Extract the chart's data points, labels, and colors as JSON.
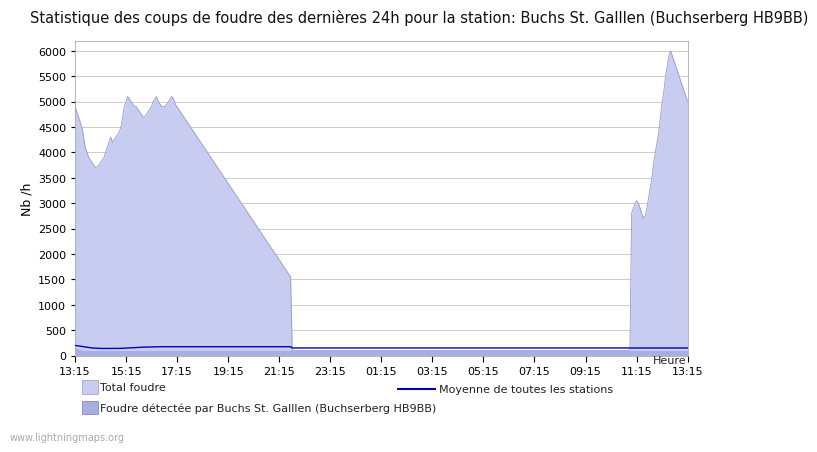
{
  "title": "Statistique des coups de foudre des dernières 24h pour la station: Buchs St. Galllen (Buchserberg HB9BB)",
  "ylabel": "Nb /h",
  "xlabel": "Heure",
  "watermark": "www.lightningmaps.org",
  "ylim": [
    0,
    6200
  ],
  "yticks": [
    0,
    500,
    1000,
    1500,
    2000,
    2500,
    3000,
    3500,
    4000,
    4500,
    5000,
    5500,
    6000
  ],
  "xtick_labels": [
    "13:15",
    "15:15",
    "17:15",
    "19:15",
    "21:15",
    "23:15",
    "01:15",
    "03:15",
    "05:15",
    "07:15",
    "09:15",
    "11:15",
    "13:15"
  ],
  "fill_color": "#c8ccf0",
  "fill_edge_color": "#9898c8",
  "station_fill_color": "#a8aee0",
  "station_edge_color": "#7878c0",
  "mean_line_color": "#0000bb",
  "background_color": "#ffffff",
  "plot_bg_color": "#ffffff",
  "grid_color": "#cccccc",
  "title_fontsize": 10.5,
  "legend_fontsize": 8,
  "tick_fontsize": 8,
  "legend_total": "Total foudre",
  "legend_station": "Foudre détectée par Buchs St. Galllen (Buchserberg HB9BB)",
  "legend_mean": "Moyenne de toutes les stations",
  "label_heure": "Heure",
  "total_foudre": [
    4900,
    4800,
    4700,
    4600,
    4500,
    4300,
    4100,
    4000,
    3900,
    3850,
    3800,
    3750,
    3700,
    3720,
    3750,
    3800,
    3850,
    3900,
    4000,
    4100,
    4200,
    4300,
    4200,
    4250,
    4300,
    4350,
    4400,
    4500,
    4700,
    4900,
    5000,
    5100,
    5050,
    5000,
    4950,
    4900,
    4900,
    4850,
    4800,
    4750,
    4700,
    4700,
    4750,
    4800,
    4850,
    4900,
    5000,
    5050,
    5100,
    5000,
    4950,
    4900,
    4900,
    4900,
    4950,
    5000,
    5050,
    5100,
    5050,
    4950,
    4900,
    4850,
    4800,
    4750,
    4700,
    4650,
    4600,
    4550,
    4500,
    4450,
    4400,
    4350,
    4300,
    4250,
    4200,
    4150,
    4100,
    4050,
    4000,
    3950,
    3900,
    3850,
    3800,
    3750,
    3700,
    3650,
    3600,
    3550,
    3500,
    3450,
    3400,
    3350,
    3300,
    3250,
    3200,
    3150,
    3100,
    3050,
    3000,
    2950,
    2900,
    2850,
    2800,
    2750,
    2700,
    2650,
    2600,
    2550,
    2500,
    2450,
    2400,
    2350,
    2300,
    2250,
    2200,
    2150,
    2100,
    2050,
    2000,
    1950,
    1900,
    1850,
    1800,
    1750,
    1700,
    1650,
    1600,
    1550,
    100,
    100,
    100,
    100,
    100,
    100,
    100,
    100,
    100,
    100,
    100,
    100,
    100,
    100,
    100,
    100,
    100,
    100,
    100,
    100,
    100,
    100,
    100,
    100,
    100,
    100,
    100,
    100,
    100,
    100,
    100,
    100,
    100,
    100,
    100,
    100,
    100,
    100,
    100,
    100,
    100,
    100,
    100,
    100,
    100,
    100,
    100,
    100,
    100,
    100,
    100,
    100,
    100,
    100,
    100,
    100,
    100,
    100,
    100,
    100,
    100,
    100,
    100,
    100,
    100,
    100,
    100,
    100,
    100,
    100,
    100,
    100,
    100,
    100,
    100,
    100,
    100,
    100,
    100,
    100,
    100,
    100,
    100,
    100,
    100,
    100,
    100,
    100,
    100,
    100,
    100,
    100,
    100,
    100,
    100,
    100,
    100,
    100,
    100,
    100,
    100,
    100,
    100,
    100,
    100,
    100,
    100,
    100,
    100,
    100,
    100,
    100,
    100,
    100,
    100,
    100,
    100,
    100,
    100,
    100,
    100,
    100,
    100,
    100,
    100,
    100,
    100,
    100,
    100,
    100,
    100,
    100,
    100,
    100,
    100,
    100,
    100,
    100,
    100,
    100,
    100,
    100,
    100,
    100,
    100,
    100,
    100,
    100,
    100,
    100,
    100,
    100,
    100,
    100,
    100,
    100,
    100,
    100,
    100,
    100,
    100,
    100,
    100,
    100,
    100,
    100,
    100,
    100,
    100,
    100,
    100,
    100,
    100,
    100,
    100,
    100,
    100,
    100,
    100,
    100,
    100,
    100,
    100,
    100,
    100,
    100,
    100,
    100,
    100,
    100,
    100,
    100,
    100,
    100,
    100,
    100,
    100,
    100,
    100,
    100,
    2800,
    2900,
    3000,
    3050,
    3000,
    2900,
    2800,
    2700,
    2750,
    2900,
    3100,
    3300,
    3500,
    3800,
    4000,
    4200,
    4400,
    4700,
    5000,
    5200,
    5500,
    5700,
    5900,
    6000,
    5900,
    5800,
    5700,
    5600,
    5500,
    5400,
    5300,
    5200,
    5100,
    5000
  ],
  "station_foudre": [
    150,
    140,
    130,
    120,
    110,
    100,
    100,
    100,
    100,
    100,
    100,
    100,
    100,
    100,
    100,
    100,
    100,
    100,
    100,
    100,
    100,
    100,
    100,
    100,
    100,
    100,
    100,
    100,
    100,
    100,
    100,
    100,
    100,
    100,
    100,
    100,
    100,
    100,
    100,
    100,
    100,
    100,
    100,
    100,
    100,
    100,
    100,
    100,
    100,
    100,
    100,
    100,
    100,
    100,
    100,
    100,
    100,
    100,
    100,
    100,
    100,
    100,
    100,
    100,
    100,
    100,
    100,
    100,
    100,
    100,
    100,
    100,
    100,
    100,
    100,
    100,
    100,
    100,
    100,
    100,
    100,
    100,
    100,
    100,
    100,
    100,
    100,
    100,
    100,
    100,
    100,
    100,
    100,
    100,
    100,
    100,
    100,
    100,
    100,
    100,
    100,
    100,
    100,
    100,
    100,
    100,
    100,
    100,
    100,
    100,
    100,
    100,
    100,
    100,
    100,
    100,
    100,
    100,
    100,
    100,
    100,
    100,
    100,
    100,
    100,
    100,
    100,
    100,
    100,
    100,
    100,
    100,
    100,
    100,
    100,
    100,
    100,
    100,
    100,
    100,
    100,
    100,
    100,
    100,
    100,
    100,
    100,
    100,
    100,
    100,
    100,
    100,
    100,
    100,
    100,
    100,
    100,
    100,
    100,
    100,
    100,
    100,
    100,
    100,
    100,
    100,
    100,
    100,
    100,
    100,
    100,
    100,
    100,
    100,
    100,
    100,
    100,
    100,
    100,
    100,
    100,
    100,
    100,
    100,
    100,
    100,
    100,
    100,
    100,
    100,
    100,
    100,
    100,
    100,
    100,
    100,
    100,
    100,
    100,
    100,
    100,
    100,
    100,
    100,
    100,
    100,
    100,
    100,
    100,
    100,
    100,
    100,
    100,
    100,
    100,
    100,
    100,
    100,
    100,
    100,
    100,
    100,
    100,
    100,
    100,
    100,
    100,
    100,
    100,
    100,
    100,
    100,
    100,
    100,
    100,
    100,
    100,
    100,
    100,
    100,
    100,
    100,
    100,
    100,
    100,
    100,
    100,
    100,
    100,
    100,
    100,
    100,
    100,
    100,
    100,
    100,
    100,
    100,
    100,
    100,
    100,
    100,
    100,
    100,
    100,
    100,
    100,
    100,
    100,
    100,
    100,
    100,
    100,
    100,
    100,
    100,
    100,
    100,
    100,
    100,
    100,
    100,
    100,
    100,
    100,
    100,
    100,
    100,
    100,
    100,
    100,
    100,
    100,
    100,
    100,
    100,
    100,
    100,
    100,
    100,
    100,
    100,
    100,
    100,
    100,
    100,
    100,
    100,
    100,
    100,
    100,
    100,
    100,
    100,
    100,
    100,
    100,
    100,
    100,
    100,
    100,
    100,
    100,
    100,
    100,
    100,
    100,
    100,
    100,
    100,
    100,
    100,
    100,
    100,
    100,
    100,
    100,
    100,
    100,
    100,
    100,
    100,
    100,
    100,
    100,
    100,
    100,
    100,
    100,
    100,
    100,
    100,
    100,
    100,
    100,
    100,
    100,
    100,
    100,
    100,
    100,
    100,
    100,
    100,
    100,
    100,
    100,
    100,
    100,
    100,
    100,
    100,
    100,
    100,
    100,
    100,
    100,
    100,
    100,
    100,
    100,
    100,
    100,
    100,
    100,
    100,
    100,
    100,
    100,
    100,
    100,
    100,
    100,
    100,
    100,
    100,
    100,
    100,
    100,
    100,
    100,
    100,
    100,
    100,
    100,
    100,
    100,
    100,
    100,
    100,
    100,
    100,
    100,
    100,
    100,
    100,
    100,
    100,
    100,
    100,
    100,
    100,
    100,
    100,
    100,
    100,
    100,
    100,
    100,
    100,
    100,
    100,
    100,
    100,
    100,
    100,
    100,
    100,
    100,
    100,
    100,
    100,
    100,
    100,
    100,
    100,
    100,
    100,
    100,
    100,
    100,
    100,
    100,
    100,
    100,
    100,
    100,
    100,
    100,
    100,
    100,
    100,
    100,
    100,
    100,
    100,
    100,
    100,
    100,
    100,
    100,
    100,
    100,
    100,
    100,
    100,
    100,
    100,
    100,
    100,
    100,
    100,
    100,
    100,
    100,
    100,
    100,
    100,
    100,
    100,
    100,
    100,
    100,
    100,
    100,
    100,
    100,
    100,
    100,
    100,
    100,
    100,
    100,
    100,
    100,
    100,
    100,
    100,
    100,
    100,
    100,
    100,
    100,
    100,
    100,
    100,
    100,
    100,
    100,
    100,
    100,
    100,
    100,
    100,
    100,
    100,
    100
  ],
  "mean_line": [
    200,
    195,
    190,
    185,
    180,
    175,
    170,
    165,
    160,
    155,
    150,
    148,
    146,
    144,
    142,
    140,
    140,
    140,
    140,
    140,
    140,
    140,
    140,
    140,
    140,
    140,
    140,
    142,
    144,
    146,
    148,
    150,
    152,
    154,
    156,
    158,
    160,
    162,
    164,
    165,
    166,
    167,
    168,
    169,
    170,
    171,
    172,
    173,
    174,
    175,
    175,
    175,
    175,
    175,
    175,
    175,
    175,
    175,
    175,
    175,
    175,
    175,
    175,
    175,
    175,
    175,
    175,
    175,
    175,
    175,
    175,
    175,
    175,
    175,
    175,
    175,
    175,
    175,
    175,
    175,
    175,
    175,
    175,
    175,
    175,
    175,
    175,
    175,
    175,
    175,
    175,
    175,
    175,
    175,
    175,
    175,
    175,
    175,
    175,
    175,
    175,
    175,
    175,
    175,
    175,
    175,
    175,
    175,
    175,
    175,
    175,
    175,
    175,
    175,
    175,
    175,
    175,
    175,
    175,
    175,
    175,
    175,
    175,
    175,
    175,
    175,
    175,
    175,
    150,
    150,
    150,
    150,
    150,
    150,
    150,
    150,
    150,
    150,
    150,
    150,
    150,
    150,
    150,
    150,
    150,
    150,
    150,
    150,
    150,
    150,
    150,
    150,
    150,
    150,
    150,
    150,
    150,
    150,
    150,
    150,
    150,
    150,
    150,
    150,
    150,
    150,
    150,
    150,
    150,
    150,
    150,
    150,
    150,
    150,
    150,
    150,
    150,
    150,
    150,
    150,
    150,
    150,
    150,
    150,
    150,
    150,
    150,
    150,
    150,
    150,
    150,
    150,
    150,
    150,
    150,
    150,
    150,
    150,
    150,
    150,
    150,
    150,
    150,
    150,
    150,
    150,
    150,
    150,
    150,
    150,
    150,
    150,
    150,
    150,
    150,
    150,
    150,
    150,
    150,
    150,
    150,
    150,
    150,
    150,
    150,
    150,
    150,
    150,
    150,
    150,
    150,
    150,
    150,
    150,
    150,
    150,
    150,
    150,
    150,
    150,
    150,
    150,
    150,
    150,
    150,
    150,
    150,
    150,
    150,
    150,
    150,
    150,
    150,
    150,
    150,
    150,
    150,
    150,
    150,
    150,
    150,
    150,
    150,
    150,
    150,
    150,
    150,
    150,
    150,
    150,
    150,
    150,
    150,
    150,
    150,
    150,
    150,
    150,
    150,
    150,
    150,
    150,
    150,
    150,
    150,
    150,
    150,
    150,
    150,
    150,
    150,
    150,
    150,
    150,
    150,
    150,
    150,
    150,
    150,
    150,
    150,
    150,
    150,
    150,
    150,
    150,
    150,
    150,
    150,
    150,
    150,
    150,
    150,
    150,
    150,
    150,
    150,
    150,
    150,
    150,
    150,
    150,
    150,
    150,
    150,
    150,
    150,
    150,
    150,
    150,
    150,
    150,
    150,
    150,
    150,
    150,
    150,
    150,
    150,
    150,
    150,
    150,
    150,
    150,
    150,
    150,
    150,
    150,
    150,
    150,
    150,
    150,
    150,
    150,
    150,
    150,
    150,
    150,
    150,
    150,
    150,
    150,
    150,
    150,
    150,
    150,
    150,
    150,
    150,
    150,
    150,
    150,
    150,
    150,
    150,
    150,
    150,
    150,
    150,
    150,
    150,
    150,
    150,
    150,
    150,
    150,
    150,
    150,
    150,
    150,
    150,
    150,
    150,
    150,
    150,
    150,
    150,
    150,
    150,
    150,
    150,
    150,
    150,
    150,
    150,
    150,
    150,
    150,
    150,
    150,
    150,
    150,
    150,
    150,
    150,
    150,
    150,
    150,
    150,
    150,
    150,
    150,
    150,
    150,
    150,
    150
  ]
}
